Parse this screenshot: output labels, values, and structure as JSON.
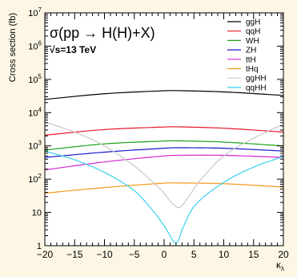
{
  "chart_data": {
    "type": "line",
    "title": "σ(pp → H(H)+X)",
    "subtitle": "√s=13 TeV",
    "ylabel": "Cross section (fb)",
    "xlabel": "κλ",
    "xlim": [
      -20,
      20
    ],
    "ylim": [
      1,
      10000000
    ],
    "yscale": "log",
    "x_ticks": [
      -20,
      -15,
      -10,
      -5,
      0,
      5,
      10,
      15,
      20
    ],
    "x_tick_labels": [
      "−20",
      "−15",
      "−10",
      "−5",
      "0",
      "5",
      "10",
      "15",
      "20"
    ],
    "y_ticks": [
      1,
      10,
      100,
      1000,
      10000,
      100000,
      1000000,
      10000000
    ],
    "y_tick_labels": [
      {
        "base": "1",
        "exp": ""
      },
      {
        "base": "10",
        "exp": ""
      },
      {
        "base": "10",
        "exp": "2"
      },
      {
        "base": "10",
        "exp": "3"
      },
      {
        "base": "10",
        "exp": "4"
      },
      {
        "base": "10",
        "exp": "5"
      },
      {
        "base": "10",
        "exp": "6"
      },
      {
        "base": "10",
        "exp": "7"
      }
    ],
    "grid": false,
    "legend_position": "top-right",
    "series": [
      {
        "name": "ggH",
        "color": "#000000",
        "x": [
          -20,
          -10,
          0,
          2,
          10,
          20
        ],
        "values": [
          25000,
          37000,
          45500,
          46000,
          42000,
          33000
        ]
      },
      {
        "name": "qqH",
        "color": "#e8192c",
        "x": [
          -20,
          -10,
          0,
          2,
          10,
          20
        ],
        "values": [
          2100,
          3100,
          3700,
          3750,
          3400,
          2600
        ]
      },
      {
        "name": "WH",
        "color": "#1aa31a",
        "x": [
          -20,
          -10,
          0,
          2,
          10,
          20
        ],
        "values": [
          750,
          1150,
          1400,
          1420,
          1300,
          1000
        ]
      },
      {
        "name": "ZH",
        "color": "#1a1acc",
        "x": [
          -20,
          -10,
          0,
          2,
          10,
          20
        ],
        "values": [
          450,
          650,
          850,
          880,
          850,
          700
        ]
      },
      {
        "name": "ttH",
        "color": "#d428d4",
        "x": [
          -20,
          -10,
          0,
          2,
          10,
          20
        ],
        "values": [
          190,
          330,
          500,
          520,
          520,
          450
        ]
      },
      {
        "name": "tHq",
        "color": "#f59a1a",
        "x": [
          -20,
          -10,
          0,
          2,
          10,
          20
        ],
        "values": [
          38,
          56,
          76,
          77,
          73,
          58
        ]
      },
      {
        "name": "ggHH",
        "color": "#c8c8c8",
        "x": [
          -20,
          -15,
          -10,
          -5,
          -2,
          0,
          1,
          2,
          2.5,
          3,
          4,
          6,
          10,
          15,
          20
        ],
        "values": [
          5200,
          2600,
          1000,
          250,
          85,
          38,
          22,
          15,
          14,
          16,
          28,
          90,
          500,
          1700,
          4500
        ]
      },
      {
        "name": "qqHH",
        "color": "#38d2f0",
        "x": [
          -20,
          -15,
          -10,
          -5,
          -2,
          0,
          1,
          1.5,
          2,
          2.5,
          3,
          5,
          10,
          15,
          20
        ],
        "values": [
          700,
          380,
          160,
          45,
          12,
          4,
          2,
          1.4,
          1.2,
          1.6,
          3,
          15,
          80,
          230,
          480
        ]
      }
    ]
  }
}
